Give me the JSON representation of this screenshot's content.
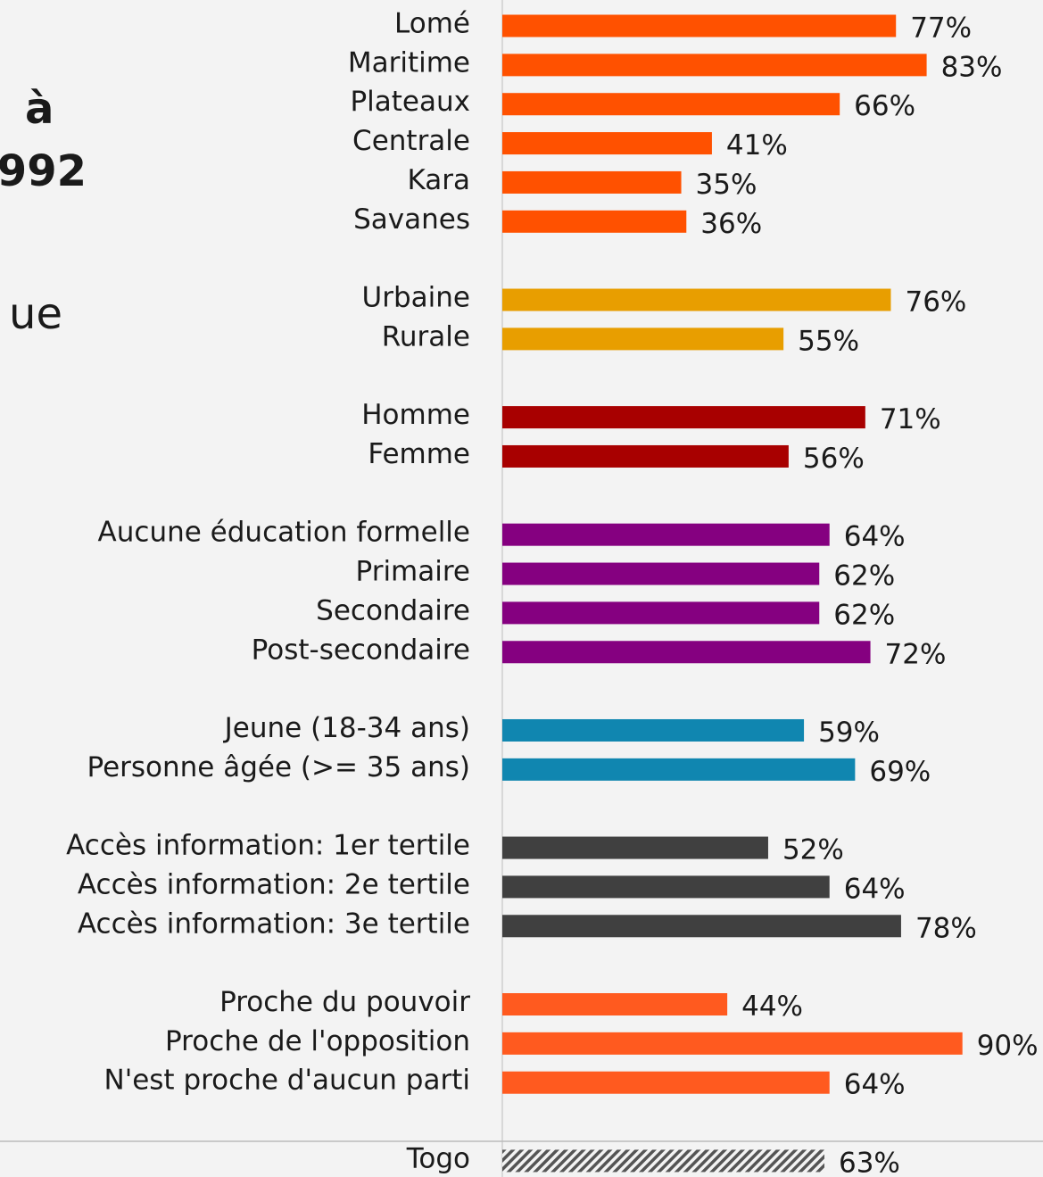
{
  "slide": {
    "fragments": [
      "à",
      "992",
      "ue"
    ]
  },
  "chart_data": {
    "type": "bar",
    "orientation": "horizontal",
    "categories": [
      "Lomé",
      "Maritime",
      "Plateaux",
      "Centrale",
      "Kara",
      "Savanes",
      null,
      "Urbaine",
      "Rurale",
      null,
      "Homme",
      "Femme",
      null,
      "Aucune éducation formelle",
      "Primaire",
      "Secondaire",
      "Post-secondaire",
      null,
      "Jeune (18-34 ans)",
      "Personne âgée (>= 35 ans)",
      null,
      "Accès information: 1er tertile",
      "Accès information: 2e tertile",
      "Accès information: 3e tertile",
      null,
      "Proche du pouvoir",
      "Proche de l'opposition",
      "N'est proche d'aucun parti",
      null,
      "Togo"
    ],
    "values": [
      77,
      83,
      66,
      41,
      35,
      36,
      null,
      76,
      55,
      null,
      71,
      56,
      null,
      64,
      62,
      62,
      72,
      null,
      59,
      69,
      null,
      52,
      64,
      78,
      null,
      44,
      90,
      64,
      null,
      63
    ],
    "value_labels": [
      "77%",
      "83%",
      "66%",
      "41%",
      "35%",
      "36%",
      null,
      "76%",
      "55%",
      null,
      "71%",
      "56%",
      null,
      "64%",
      "62%",
      "62%",
      "72%",
      null,
      "59%",
      "69%",
      null,
      "52%",
      "64%",
      "78%",
      null,
      "44%",
      "90%",
      "64%",
      null,
      "63%"
    ],
    "colors": [
      "#ff5100",
      "#ff5100",
      "#ff5100",
      "#ff5100",
      "#ff5100",
      "#ff5100",
      null,
      "#e89e00",
      "#e89e00",
      null,
      "#a80000",
      "#a80000",
      null,
      "#850080",
      "#850080",
      "#850080",
      "#850080",
      null,
      "#1086b0",
      "#1086b0",
      null,
      "#404040",
      "#404040",
      "#404040",
      null,
      "#ff5a1f",
      "#ff5a1f",
      "#ff5a1f",
      null,
      "#555555"
    ],
    "hatched_index": 29
  }
}
